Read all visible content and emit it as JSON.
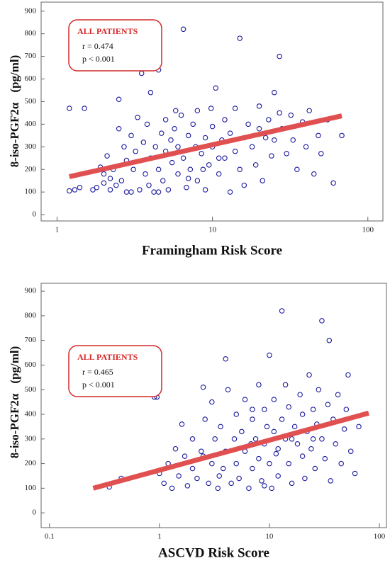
{
  "chart_data": [
    {
      "type": "scatter",
      "xlabel": "Framingham Risk Score",
      "ylabel": "8-iso-PGF2α",
      "yunit": "(pg/ml)",
      "log_x": true,
      "xlim": [
        0.79,
        125
      ],
      "xticks": [
        1,
        10,
        100
      ],
      "ylim": [
        -28,
        940
      ],
      "yticks": [
        0,
        100,
        200,
        300,
        400,
        500,
        600,
        700,
        800,
        900
      ],
      "color": "#1a1a9e",
      "x": [
        1.2,
        1.5,
        1.2,
        1.3,
        1.4,
        1.7,
        1.8,
        1.9,
        2,
        2,
        2.1,
        2.2,
        2.2,
        2.3,
        2.4,
        2.5,
        2.5,
        2.6,
        2.7,
        2.8,
        3,
        3,
        3.1,
        3.2,
        3.3,
        3.4,
        3.5,
        3.6,
        3.7,
        3.8,
        4,
        4,
        4.2,
        4.3,
        4.5,
        4.5,
        4.7,
        4.8,
        5,
        5,
        5.2,
        5.4,
        5.5,
        5.7,
        6,
        6,
        6.3,
        6.5,
        6.5,
        6.8,
        7,
        7.2,
        7.5,
        7.8,
        8,
        8,
        8.5,
        9,
        9,
        9.5,
        10,
        10,
        10.5,
        11,
        11.5,
        12,
        12,
        13,
        13,
        14,
        14,
        15,
        15,
        16,
        16,
        17,
        18,
        19,
        20,
        20,
        21,
        22,
        23,
        24,
        25,
        25,
        27,
        27,
        28,
        30,
        32,
        33,
        35,
        38,
        40,
        42,
        45,
        48,
        50,
        55,
        60,
        68,
        2.8,
        3.9,
        5.8,
        9.8,
        11,
        7,
        4.5,
        8.7
      ],
      "values": [
        470,
        470,
        105,
        110,
        120,
        110,
        120,
        210,
        180,
        140,
        260,
        160,
        110,
        200,
        130,
        380,
        510,
        150,
        300,
        240,
        100,
        350,
        200,
        280,
        430,
        110,
        625,
        320,
        180,
        400,
        540,
        250,
        100,
        300,
        640,
        200,
        360,
        150,
        280,
        420,
        110,
        330,
        230,
        380,
        180,
        300,
        440,
        820,
        250,
        120,
        350,
        200,
        400,
        300,
        150,
        460,
        270,
        340,
        110,
        220,
        390,
        300,
        560,
        180,
        330,
        420,
        250,
        100,
        360,
        280,
        470,
        780,
        200,
        340,
        130,
        400,
        300,
        220,
        380,
        480,
        150,
        340,
        420,
        260,
        540,
        330,
        700,
        450,
        380,
        270,
        440,
        330,
        200,
        410,
        300,
        460,
        180,
        350,
        270,
        420,
        140,
        350,
        100,
        130,
        460,
        470,
        250,
        160,
        100,
        200
      ],
      "fit": {
        "x": [
          1.2,
          68
        ],
        "values": [
          168,
          437
        ],
        "color": "#e05050"
      },
      "annotation": {
        "title": "ALL PATIENTS",
        "lines": [
          "r = 0.474",
          "p < 0.001"
        ],
        "color": "#d42a2a"
      }
    },
    {
      "type": "scatter",
      "xlabel": "ASCVD Risk Score",
      "ylabel": "8-iso-PGF2α",
      "yunit": "(pg/ml)",
      "log_x": true,
      "xlim": [
        0.084,
        116
      ],
      "xticks": [
        0.1,
        1,
        10,
        100
      ],
      "ylim": [
        -60,
        932
      ],
      "yticks": [
        0,
        100,
        200,
        300,
        400,
        500,
        600,
        700,
        800,
        900
      ],
      "color": "#1a1a9e",
      "x": [
        0.35,
        0.45,
        0.9,
        0.95,
        1,
        1.1,
        1.2,
        1.3,
        1.4,
        1.5,
        1.6,
        1.7,
        1.8,
        2,
        2,
        2.2,
        2.4,
        2.5,
        2.6,
        2.8,
        3,
        3,
        3.2,
        3.4,
        3.6,
        3.8,
        4,
        4,
        4.2,
        4.5,
        4.8,
        5,
        5,
        5.3,
        5.6,
        6,
        6,
        6.5,
        7,
        7,
        7.5,
        8,
        8,
        8.5,
        9,
        9,
        9.5,
        10,
        10,
        10.5,
        11,
        11,
        12,
        12,
        13,
        13,
        14,
        14,
        15,
        15,
        16,
        17,
        18,
        19,
        20,
        20,
        21,
        22,
        23,
        24,
        25,
        26,
        27,
        28,
        30,
        30,
        32,
        34,
        35,
        36,
        38,
        40,
        42,
        45,
        48,
        50,
        52,
        55,
        60,
        65,
        2.5,
        3.5,
        6.8,
        11.5,
        16,
        25,
        9,
        7
      ],
      "values": [
        105,
        140,
        470,
        470,
        160,
        120,
        200,
        100,
        260,
        150,
        360,
        230,
        110,
        180,
        300,
        140,
        250,
        510,
        380,
        120,
        200,
        450,
        300,
        100,
        350,
        180,
        625,
        250,
        500,
        120,
        300,
        400,
        200,
        140,
        330,
        250,
        460,
        100,
        380,
        180,
        300,
        520,
        220,
        130,
        420,
        280,
        350,
        640,
        200,
        100,
        330,
        460,
        260,
        150,
        820,
        380,
        300,
        520,
        200,
        430,
        120,
        350,
        280,
        480,
        230,
        400,
        140,
        330,
        560,
        260,
        420,
        180,
        360,
        500,
        780,
        300,
        220,
        440,
        700,
        130,
        380,
        280,
        480,
        200,
        340,
        420,
        560,
        250,
        160,
        350,
        230,
        150,
        280,
        240,
        300,
        300,
        110,
        420
      ],
      "fit": {
        "x": [
          0.25,
          80
        ],
        "values": [
          100,
          405
        ],
        "color": "#e05050"
      },
      "annotation": {
        "title": "ALL PATIENTS",
        "lines": [
          "r = 0.465",
          "p < 0.001"
        ],
        "color": "#d42a2a"
      }
    }
  ]
}
